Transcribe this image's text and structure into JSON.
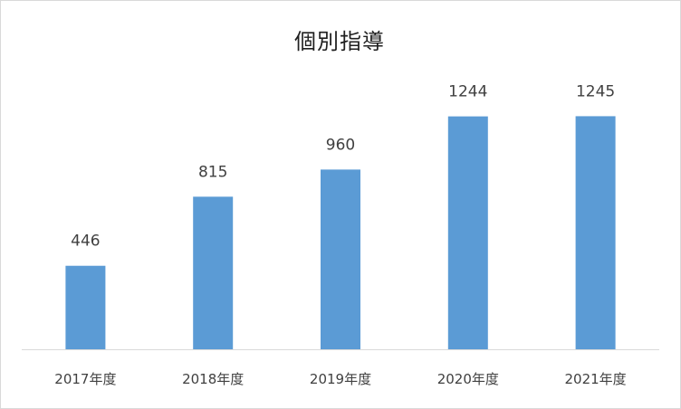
{
  "chart_data": {
    "type": "bar",
    "title": "個別指導",
    "categories": [
      "2017年度",
      "2018年度",
      "2019年度",
      "2020年度",
      "2021年度"
    ],
    "series": [
      {
        "values": [
          446,
          815,
          960,
          1244,
          1245
        ]
      }
    ],
    "ylim": [
      0,
      1450
    ],
    "grid": false,
    "legend": "none",
    "data_labels": true,
    "colors": {
      "bar": "#5b9bd5",
      "axis": "#d9d9d9",
      "text": "#404040"
    }
  }
}
